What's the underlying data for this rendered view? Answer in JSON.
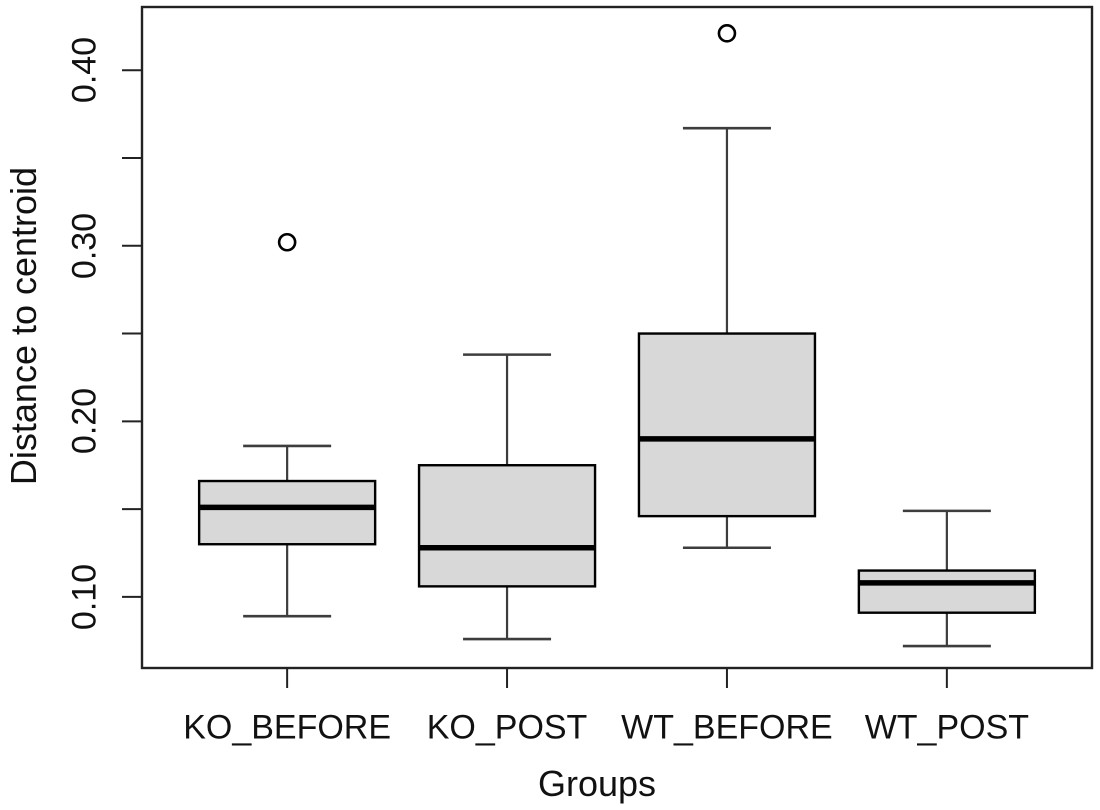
{
  "figure": {
    "background": "#ffffff"
  },
  "chart_data": {
    "type": "boxplot",
    "title": "",
    "xlabel": "Groups",
    "ylabel": "Distance to centroid",
    "categories": [
      "KO_BEFORE",
      "KO_POST",
      "WT_BEFORE",
      "WT_POST"
    ],
    "ylim": [
      0.0595,
      0.436
    ],
    "grid": false,
    "legend": "none",
    "y_ticks": [
      {
        "value": 0.1,
        "label": "0.10"
      },
      {
        "value": 0.15,
        "label": ""
      },
      {
        "value": 0.2,
        "label": "0.20"
      },
      {
        "value": 0.25,
        "label": ""
      },
      {
        "value": 0.3,
        "label": "0.30"
      },
      {
        "value": 0.35,
        "label": ""
      },
      {
        "value": 0.4,
        "label": "0.40"
      }
    ],
    "series": [
      {
        "name": "KO_BEFORE",
        "whisker_low": 0.089,
        "q1": 0.13,
        "median": 0.151,
        "q3": 0.166,
        "whisker_high": 0.186,
        "outliers": [
          0.302
        ]
      },
      {
        "name": "KO_POST",
        "whisker_low": 0.076,
        "q1": 0.106,
        "median": 0.128,
        "q3": 0.175,
        "whisker_high": 0.238,
        "outliers": []
      },
      {
        "name": "WT_BEFORE",
        "whisker_low": 0.128,
        "q1": 0.146,
        "median": 0.19,
        "q3": 0.25,
        "whisker_high": 0.367,
        "outliers": [
          0.421
        ]
      },
      {
        "name": "WT_POST",
        "whisker_low": 0.072,
        "q1": 0.091,
        "median": 0.108,
        "q3": 0.115,
        "whisker_high": 0.149,
        "outliers": []
      }
    ],
    "colors": {
      "box_fill": "#d8d8d8",
      "box_border": "#000000",
      "median": "#000000",
      "whisker": "#3d3d3d",
      "outlier": "#000000",
      "frame": "#222222",
      "text": "#111111"
    }
  }
}
